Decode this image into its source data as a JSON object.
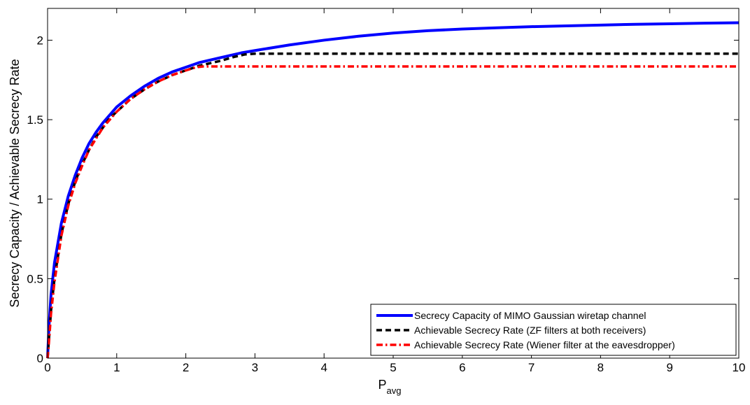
{
  "chart_data": {
    "type": "line",
    "title": "",
    "xlabel": "P",
    "xlabel_subscript": "avg",
    "ylabel": "Secrecy Capacity / Achievable Secrecy Rate",
    "xlim": [
      0,
      10
    ],
    "ylim": [
      0,
      2.2
    ],
    "x_ticks": [
      {
        "value": 0,
        "label": "0"
      },
      {
        "value": 1,
        "label": "1"
      },
      {
        "value": 2,
        "label": "2"
      },
      {
        "value": 3,
        "label": "3"
      },
      {
        "value": 4,
        "label": "4"
      },
      {
        "value": 5,
        "label": "5"
      },
      {
        "value": 6,
        "label": "6"
      },
      {
        "value": 7,
        "label": "7"
      },
      {
        "value": 8,
        "label": "8"
      },
      {
        "value": 9,
        "label": "9"
      },
      {
        "value": 10,
        "label": "10"
      }
    ],
    "y_ticks": [
      {
        "value": 0,
        "label": "0"
      },
      {
        "value": 0.5,
        "label": "0.5"
      },
      {
        "value": 1,
        "label": "1"
      },
      {
        "value": 1.5,
        "label": "1.5"
      },
      {
        "value": 2,
        "label": "2"
      }
    ],
    "grid": false,
    "legend_position": "bottom-right",
    "series": [
      {
        "name": "Secrecy Capacity of MIMO Gaussian wiretap channel",
        "color": "#0000ff",
        "style": "solid",
        "x": [
          0,
          0.02,
          0.05,
          0.1,
          0.2,
          0.3,
          0.4,
          0.5,
          0.6,
          0.7,
          0.8,
          0.9,
          1.0,
          1.2,
          1.4,
          1.6,
          1.8,
          2.0,
          2.2,
          2.5,
          2.8,
          3.0,
          3.5,
          4.0,
          4.5,
          5.0,
          5.5,
          6.0,
          6.5,
          7.0,
          7.5,
          8.0,
          8.5,
          9.0,
          9.5,
          10.0
        ],
        "y": [
          0,
          0.2,
          0.4,
          0.6,
          0.85,
          1.02,
          1.15,
          1.26,
          1.35,
          1.42,
          1.48,
          1.53,
          1.58,
          1.65,
          1.71,
          1.76,
          1.8,
          1.83,
          1.86,
          1.89,
          1.92,
          1.935,
          1.97,
          2.0,
          2.025,
          2.045,
          2.06,
          2.07,
          2.078,
          2.085,
          2.09,
          2.095,
          2.1,
          2.103,
          2.107,
          2.11
        ]
      },
      {
        "name": "Achievable Secrecy Rate  (ZF filters at both receivers)",
        "color": "#000000",
        "style": "dashed",
        "x": [
          0,
          0.02,
          0.05,
          0.1,
          0.2,
          0.3,
          0.4,
          0.5,
          0.6,
          0.7,
          0.8,
          0.9,
          1.0,
          1.2,
          1.4,
          1.6,
          1.8,
          2.0,
          2.2,
          2.5,
          2.7,
          2.85,
          3.0,
          4.0,
          5.0,
          6.0,
          7.0,
          8.0,
          9.0,
          10.0
        ],
        "y": [
          0,
          0.12,
          0.3,
          0.5,
          0.78,
          0.97,
          1.11,
          1.22,
          1.31,
          1.39,
          1.45,
          1.51,
          1.55,
          1.63,
          1.69,
          1.74,
          1.78,
          1.81,
          1.84,
          1.87,
          1.895,
          1.91,
          1.915,
          1.915,
          1.915,
          1.915,
          1.915,
          1.915,
          1.915,
          1.915
        ]
      },
      {
        "name": "Achievable Secrecy Rate  (Wiener filter at the eavesdropper)",
        "color": "#ff0000",
        "style": "dashdot",
        "x": [
          0,
          0.02,
          0.05,
          0.1,
          0.2,
          0.3,
          0.4,
          0.5,
          0.6,
          0.7,
          0.8,
          0.9,
          1.0,
          1.2,
          1.4,
          1.6,
          1.8,
          2.0,
          2.15,
          2.25,
          3.0,
          4.0,
          5.0,
          6.0,
          7.0,
          8.0,
          9.0,
          10.0
        ],
        "y": [
          0,
          0.1,
          0.28,
          0.48,
          0.77,
          0.96,
          1.1,
          1.21,
          1.31,
          1.38,
          1.45,
          1.5,
          1.55,
          1.63,
          1.69,
          1.74,
          1.78,
          1.81,
          1.83,
          1.835,
          1.835,
          1.835,
          1.835,
          1.835,
          1.835,
          1.835,
          1.835,
          1.835
        ]
      }
    ]
  }
}
